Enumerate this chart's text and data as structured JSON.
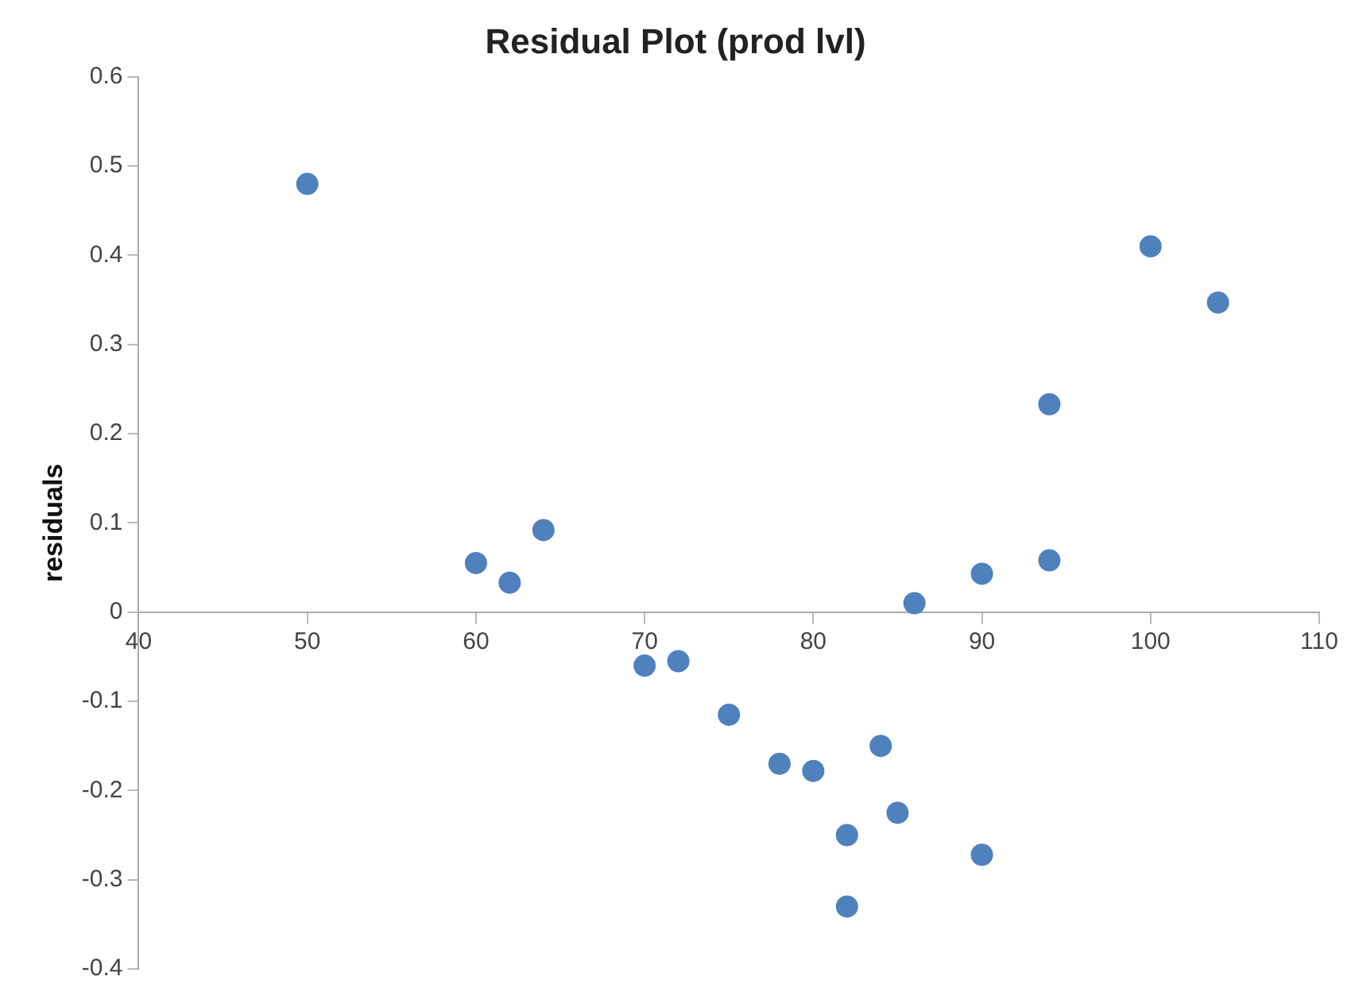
{
  "chart_data": {
    "type": "scatter",
    "title": "Residual Plot (prod lvl)",
    "ylabel": "residuals",
    "x": [
      50,
      60,
      62,
      64,
      70,
      72,
      75,
      78,
      80,
      82,
      82,
      84,
      85,
      86,
      90,
      90,
      94,
      94,
      100,
      104
    ],
    "series": [
      {
        "color": "#4f81bd",
        "values": [
          0.48,
          0.055,
          0.033,
          0.092,
          -0.06,
          -0.055,
          -0.115,
          -0.17,
          -0.178,
          -0.25,
          -0.33,
          -0.15,
          -0.225,
          0.01,
          0.043,
          -0.272,
          0.233,
          0.058,
          0.41,
          0.347
        ]
      }
    ],
    "xlim": [
      40,
      110
    ],
    "xticks": [
      40,
      50,
      60,
      70,
      80,
      90,
      100,
      110
    ],
    "ylim": [
      -0.4,
      0.6
    ],
    "yticks": [
      -0.4,
      -0.3,
      -0.2,
      -0.1,
      0,
      0.1,
      0.2,
      0.3,
      0.4,
      0.5,
      0.6
    ],
    "grid": false,
    "legend": false,
    "marker": "circle"
  }
}
